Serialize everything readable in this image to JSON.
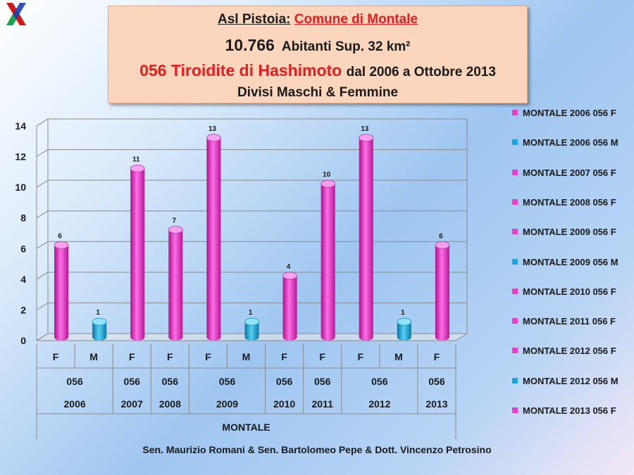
{
  "logo": {
    "letter": "X"
  },
  "header": {
    "line1_prefix": "Asl Pistoia:",
    "line1_comune": "Comune di Montale",
    "line2_number": "10.766",
    "line2_rest": "Abitanti Sup. 32 km²",
    "line3_red": "056 Tiroidite di Hashimoto",
    "line3_rest": "dal 2006 a Ottobre 2013",
    "line4": "Divisi Maschi & Femmine"
  },
  "footer": "Sen. Maurizio Romani & Sen. Bartolomeo Pepe & Dott. Vincenzo Petrosino",
  "colors": {
    "F": "#e83ec8",
    "M": "#1aa7d9"
  },
  "chart_data": {
    "type": "bar",
    "ylim": [
      0,
      14
    ],
    "y_ticks": [
      "0",
      "2",
      "4",
      "6",
      "8",
      "10",
      "12",
      "14"
    ],
    "categories": [
      {
        "sex": "F",
        "code": "056",
        "year": "2006",
        "value": 6
      },
      {
        "sex": "M",
        "code": "056",
        "year": "2006",
        "value": 1
      },
      {
        "sex": "F",
        "code": "056",
        "year": "2007",
        "value": 11
      },
      {
        "sex": "F",
        "code": "056",
        "year": "2008",
        "value": 7
      },
      {
        "sex": "F",
        "code": "056",
        "year": "2009",
        "value": 13
      },
      {
        "sex": "M",
        "code": "056",
        "year": "2009",
        "value": 1
      },
      {
        "sex": "F",
        "code": "056",
        "year": "2010",
        "value": 4
      },
      {
        "sex": "F",
        "code": "056",
        "year": "2011",
        "value": 10
      },
      {
        "sex": "F",
        "code": "056",
        "year": "2012",
        "value": 13
      },
      {
        "sex": "M",
        "code": "056",
        "year": "2012",
        "value": 1
      },
      {
        "sex": "F",
        "code": "056",
        "year": "2013",
        "value": 6
      }
    ],
    "year_groups": [
      {
        "code": "056",
        "year": "2006"
      },
      {
        "code": "056",
        "year": "2007"
      },
      {
        "code": "056",
        "year": "2008"
      },
      {
        "code": "056",
        "year": "2009"
      },
      {
        "code": "056",
        "year": "2010"
      },
      {
        "code": "056",
        "year": "2011"
      },
      {
        "code": "056",
        "year": "2012"
      },
      {
        "code": "056",
        "year": "2013"
      }
    ],
    "xlabel": "MONTALE",
    "legend_position": "right",
    "legend": [
      {
        "label": "MONTALE 2006 056 F",
        "sex": "F"
      },
      {
        "label": "MONTALE 2006 056 M",
        "sex": "M"
      },
      {
        "label": "MONTALE 2007 056 F",
        "sex": "F"
      },
      {
        "label": "MONTALE 2008 056 F",
        "sex": "F"
      },
      {
        "label": "MONTALE 2009 056 F",
        "sex": "F"
      },
      {
        "label": "MONTALE 2009 056 M",
        "sex": "M"
      },
      {
        "label": "MONTALE 2010 056 F",
        "sex": "F"
      },
      {
        "label": "MONTALE 2011 056 F",
        "sex": "F"
      },
      {
        "label": "MONTALE 2012 056 F",
        "sex": "F"
      },
      {
        "label": "MONTALE 2012 056 M",
        "sex": "M"
      },
      {
        "label": "MONTALE 2013 056 F",
        "sex": "F"
      }
    ]
  }
}
